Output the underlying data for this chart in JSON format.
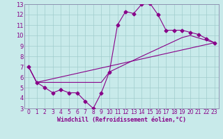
{
  "xlabel": "Windchill (Refroidissement éolien,°C)",
  "bg_color": "#c8eaea",
  "line_color": "#880088",
  "grid_color": "#a0cccc",
  "spine_color": "#8888aa",
  "xlim": [
    -0.5,
    23.5
  ],
  "ylim": [
    3,
    13
  ],
  "yticks": [
    3,
    4,
    5,
    6,
    7,
    8,
    9,
    10,
    11,
    12,
    13
  ],
  "xticks": [
    0,
    1,
    2,
    3,
    4,
    5,
    6,
    7,
    8,
    9,
    10,
    11,
    12,
    13,
    14,
    15,
    16,
    17,
    18,
    19,
    20,
    21,
    22,
    23
  ],
  "series1_x": [
    0,
    1,
    2,
    3,
    4,
    5,
    6,
    7,
    8,
    9,
    10,
    11,
    12,
    13,
    14,
    15,
    16,
    17,
    18,
    19,
    20,
    21,
    22,
    23
  ],
  "series1_y": [
    7.0,
    5.5,
    5.0,
    4.5,
    4.8,
    4.5,
    4.5,
    3.7,
    3.0,
    4.5,
    6.5,
    11.0,
    12.3,
    12.1,
    13.0,
    13.1,
    12.0,
    10.5,
    10.5,
    10.5,
    10.3,
    10.1,
    9.7,
    9.3
  ],
  "series2_x": [
    0,
    1,
    23
  ],
  "series2_y": [
    7.0,
    5.5,
    9.3
  ],
  "series3_x": [
    0,
    1,
    9,
    10,
    14,
    19,
    20,
    23
  ],
  "series3_y": [
    7.0,
    5.5,
    5.5,
    6.5,
    8.0,
    9.8,
    10.0,
    9.3
  ]
}
